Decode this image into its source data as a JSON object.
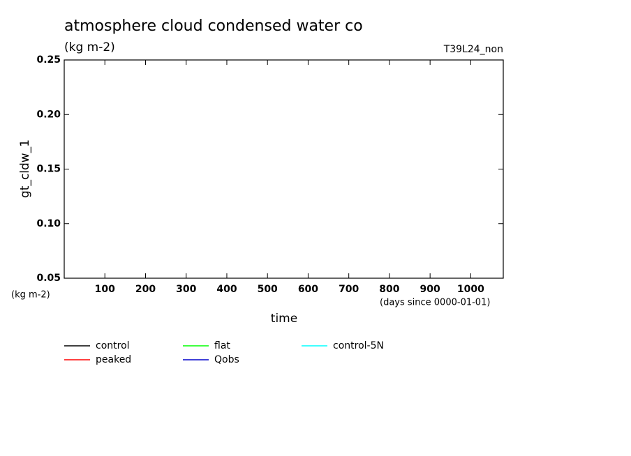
{
  "chart_data": {
    "type": "line",
    "title": "atmosphere cloud condensed water co",
    "subtitle": "(kg m-2)",
    "annotation": "T39L24_non",
    "y_label": "gt_cldw_1",
    "y_unit_label": "(kg m-2)",
    "x_label": "time",
    "x_unit_label": "(days since 0000-01-01)",
    "x": [],
    "series": [
      {
        "name": "control",
        "color": "#000000",
        "values": []
      },
      {
        "name": "peaked",
        "color": "#ff0000",
        "values": []
      },
      {
        "name": "flat",
        "color": "#00ff00",
        "values": []
      },
      {
        "name": "Qobs",
        "color": "#0000cc",
        "values": []
      },
      {
        "name": "control-5N",
        "color": "#00ffff",
        "values": []
      }
    ],
    "xlim": [
      0,
      1080
    ],
    "xticks": [
      100,
      200,
      300,
      400,
      500,
      600,
      700,
      800,
      900,
      1000
    ],
    "ylim": [
      0.05,
      0.25
    ],
    "yticks": [
      0.05,
      {
        "value": 0.1,
        "label": "0.10"
      },
      0.15,
      {
        "value": 0.2,
        "label": "0.20"
      },
      0.25
    ]
  }
}
